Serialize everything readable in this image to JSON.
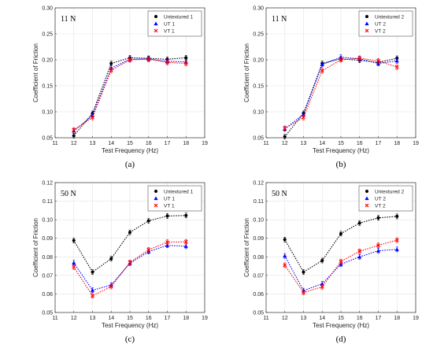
{
  "chart_data": [
    {
      "type": "line",
      "panel_label": "(a)",
      "annotation": "11 N",
      "xlabel": "Test Frequency (Hz)",
      "ylabel": "Coefficient of Friction",
      "xlim": [
        11,
        19
      ],
      "ylim": [
        0.05,
        0.3
      ],
      "x_ticks": [
        "11",
        "12",
        "13",
        "14",
        "15",
        "16",
        "17",
        "18",
        "19"
      ],
      "y_ticks": [
        "0.05",
        "0.10",
        "0.15",
        "0.20",
        "0.25",
        "0.30"
      ],
      "grid": true,
      "legend_position": "top-right",
      "x": [
        12,
        13,
        14,
        15,
        16,
        17,
        18
      ],
      "series": [
        {
          "name": "Untextured 1",
          "color": "#000000",
          "marker": "circle",
          "values": [
            0.054,
            0.097,
            0.193,
            0.204,
            0.203,
            0.201,
            0.204
          ]
        },
        {
          "name": "UT 1",
          "color": "#0000ff",
          "marker": "triangle",
          "values": [
            0.063,
            0.093,
            0.184,
            0.201,
            0.202,
            0.197,
            0.196
          ]
        },
        {
          "name": "VT 1",
          "color": "#ff0000",
          "marker": "cross",
          "values": [
            0.065,
            0.089,
            0.18,
            0.2,
            0.201,
            0.195,
            0.193
          ]
        }
      ]
    },
    {
      "type": "line",
      "panel_label": "(b)",
      "annotation": "11 N",
      "xlabel": "Test Frequency (Hz)",
      "ylabel": "Coefficient of Friction",
      "xlim": [
        11,
        19
      ],
      "ylim": [
        0.05,
        0.3
      ],
      "x_ticks": [
        "11",
        "12",
        "13",
        "14",
        "15",
        "16",
        "17",
        "18",
        "19"
      ],
      "y_ticks": [
        "0.05",
        "0.10",
        "0.15",
        "0.20",
        "0.25",
        "0.30"
      ],
      "grid": true,
      "legend_position": "top-right",
      "x": [
        12,
        13,
        14,
        15,
        16,
        17,
        18
      ],
      "series": [
        {
          "name": "Untextured 2",
          "color": "#000000",
          "marker": "circle",
          "values": [
            0.052,
            0.097,
            0.193,
            0.202,
            0.199,
            0.195,
            0.203
          ]
        },
        {
          "name": "UT 2",
          "color": "#0000ff",
          "marker": "triangle",
          "values": [
            0.067,
            0.095,
            0.191,
            0.205,
            0.202,
            0.193,
            0.198
          ]
        },
        {
          "name": "VT 2",
          "color": "#ff0000",
          "marker": "cross",
          "values": [
            0.068,
            0.089,
            0.179,
            0.2,
            0.203,
            0.198,
            0.186
          ]
        }
      ]
    },
    {
      "type": "line",
      "panel_label": "(c)",
      "annotation": "50 N",
      "xlabel": "Test Frequency (Hz)",
      "ylabel": "Coefficient of Friction",
      "xlim": [
        11,
        19
      ],
      "ylim": [
        0.05,
        0.12
      ],
      "x_ticks": [
        "11",
        "12",
        "13",
        "14",
        "15",
        "16",
        "17",
        "18",
        "19"
      ],
      "y_ticks": [
        "0.05",
        "0.06",
        "0.07",
        "0.08",
        "0.09",
        "0.10",
        "0.11",
        "0.12"
      ],
      "grid": true,
      "legend_position": "top-right",
      "x": [
        12,
        13,
        14,
        15,
        16,
        17,
        18
      ],
      "series": [
        {
          "name": "Untextured 1",
          "color": "#000000",
          "marker": "circle",
          "values": [
            0.0888,
            0.0718,
            0.079,
            0.0932,
            0.0994,
            0.102,
            0.1023
          ]
        },
        {
          "name": "UT 1",
          "color": "#0000ff",
          "marker": "triangle",
          "values": [
            0.0768,
            0.062,
            0.0648,
            0.0765,
            0.0828,
            0.0862,
            0.0857
          ]
        },
        {
          "name": "VT 1",
          "color": "#ff0000",
          "marker": "cross",
          "values": [
            0.0745,
            0.059,
            0.064,
            0.077,
            0.0838,
            0.0879,
            0.0881
          ]
        }
      ]
    },
    {
      "type": "line",
      "panel_label": "(d)",
      "annotation": "50 N",
      "xlabel": "Test Frequency (Hz)",
      "ylabel": "Coefficient of Friction",
      "xlim": [
        11,
        19
      ],
      "ylim": [
        0.05,
        0.12
      ],
      "x_ticks": [
        "11",
        "12",
        "13",
        "14",
        "15",
        "16",
        "17",
        "18",
        "19"
      ],
      "y_ticks": [
        "0.05",
        "0.06",
        "0.07",
        "0.08",
        "0.09",
        "0.10",
        "0.11",
        "0.12"
      ],
      "grid": true,
      "legend_position": "top-right",
      "x": [
        12,
        13,
        14,
        15,
        16,
        17,
        18
      ],
      "series": [
        {
          "name": "Untextured 2",
          "color": "#000000",
          "marker": "circle",
          "values": [
            0.0893,
            0.0718,
            0.078,
            0.0925,
            0.0982,
            0.101,
            0.1018
          ]
        },
        {
          "name": "UT 2",
          "color": "#0000ff",
          "marker": "triangle",
          "values": [
            0.0805,
            0.0618,
            0.0655,
            0.076,
            0.08,
            0.0833,
            0.084
          ]
        },
        {
          "name": "VT 2",
          "color": "#ff0000",
          "marker": "cross",
          "values": [
            0.0755,
            0.0608,
            0.0638,
            0.0775,
            0.083,
            0.0862,
            0.089
          ]
        }
      ]
    }
  ]
}
